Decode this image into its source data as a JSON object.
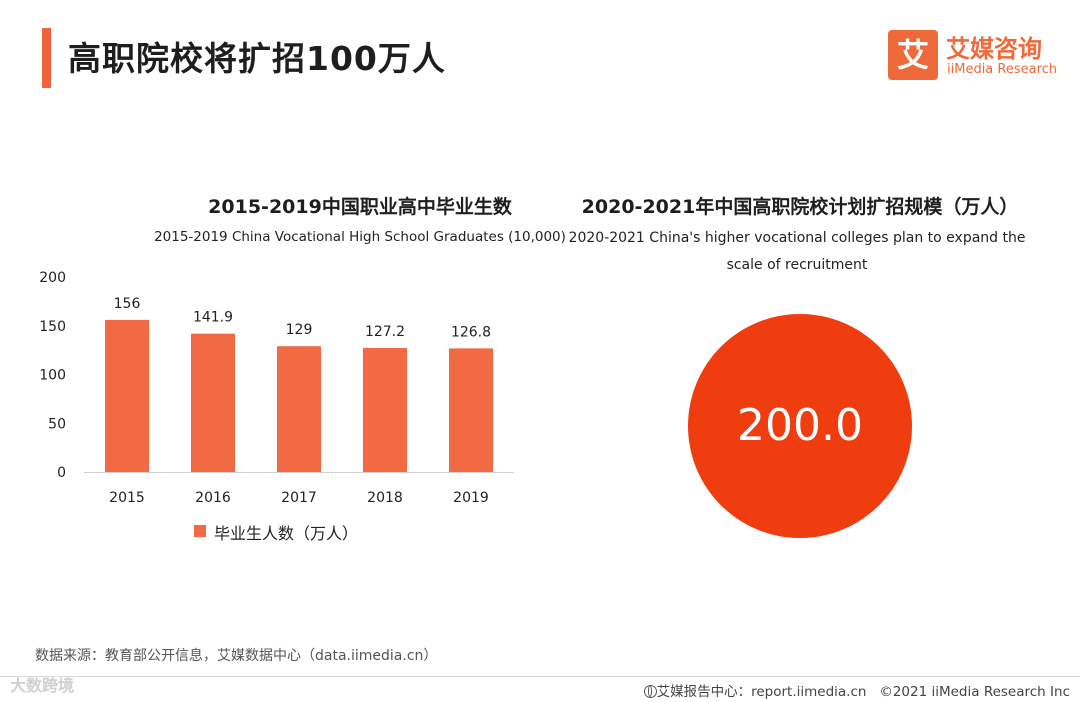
{
  "header": {
    "title": "高职院校将扩招100万人",
    "logo_mark": "艾",
    "logo_cn": "艾媒咨询",
    "logo_en": "iiMedia Research"
  },
  "left_chart": {
    "title_cn": "2015-2019中国职业高中毕业生数",
    "title_en": "2015-2019 China Vocational High School Graduates (10,000)",
    "legend_label": "毕业生人数（万人）"
  },
  "right_panel": {
    "title_cn": "2020-2021年中国高职院校计划扩招规模（万人）",
    "title_en": "2020-2021 China's higher vocational colleges plan to expand the scale of recruitment",
    "value": "200.0"
  },
  "chart_data": {
    "type": "bar",
    "title": "2015-2019中国职业高中毕业生数",
    "subtitle": "2015-2019 China Vocational High School Graduates (10,000)",
    "categories": [
      "2015",
      "2016",
      "2017",
      "2018",
      "2019"
    ],
    "series": [
      {
        "name": "毕业生人数（万人）",
        "values": [
          156,
          141.9,
          129,
          127.2,
          126.8
        ]
      }
    ],
    "data_labels": [
      "156",
      "141.9",
      "129",
      "127.2",
      "126.8"
    ],
    "yticks": [
      0,
      50,
      100,
      150,
      200
    ],
    "ylim": [
      0,
      200
    ],
    "xlabel": "",
    "ylabel": "",
    "grid": false,
    "legend_position": "bottom",
    "bar_color": "#f26a43"
  },
  "footer": {
    "source": "数据来源：教育部公开信息，艾媒数据中心（data.iimedia.cn）",
    "watermark": "大数跨境",
    "report_center": "艾媒报告中心：report.iimedia.cn",
    "copyright": "©2021  iiMedia Research  Inc"
  },
  "colors": {
    "accent": "#f0623a",
    "bar": "#f26a43",
    "circle": "#ef3d10"
  }
}
